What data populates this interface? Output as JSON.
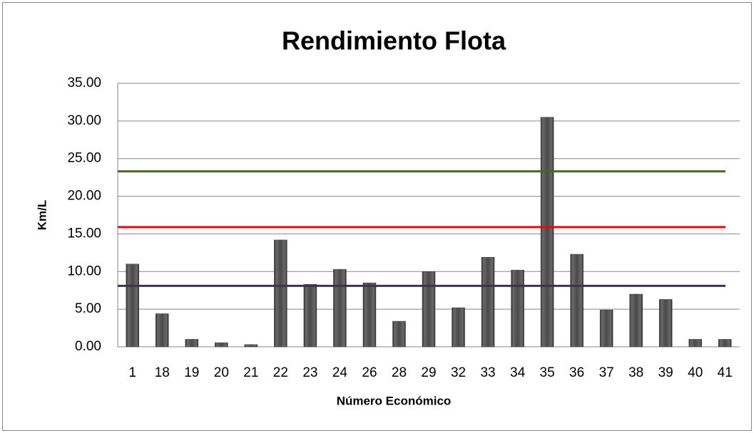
{
  "chart_data": {
    "type": "bar",
    "title": "Rendimiento Flota",
    "xlabel": "Número Económico",
    "ylabel": "Km/L",
    "categories": [
      "1",
      "18",
      "19",
      "20",
      "21",
      "22",
      "23",
      "24",
      "26",
      "28",
      "29",
      "32",
      "33",
      "34",
      "35",
      "36",
      "37",
      "38",
      "39",
      "40",
      "41"
    ],
    "values": [
      11.0,
      4.4,
      1.0,
      0.55,
      0.3,
      14.2,
      8.3,
      10.3,
      8.5,
      3.4,
      10.0,
      5.2,
      11.9,
      10.2,
      30.5,
      12.3,
      4.9,
      7.0,
      6.3,
      1.0,
      1.0
    ],
    "color": "#404040",
    "reference_lines": [
      {
        "value": 23.3,
        "color": "#4f6228"
      },
      {
        "value": 15.9,
        "color": "#ff0000"
      },
      {
        "value": 8.1,
        "color": "#403152"
      }
    ],
    "ylim": [
      0,
      35
    ],
    "yticks": [
      {
        "value": 0,
        "label": "0.00"
      },
      {
        "value": 5,
        "label": "5.00"
      },
      {
        "value": 10,
        "label": "10.00"
      },
      {
        "value": 15,
        "label": "15.00"
      },
      {
        "value": 20,
        "label": "20.00"
      },
      {
        "value": 25,
        "label": "25.00"
      },
      {
        "value": 30,
        "label": "30.00"
      },
      {
        "value": 35,
        "label": "35.00"
      }
    ],
    "grid": true
  }
}
